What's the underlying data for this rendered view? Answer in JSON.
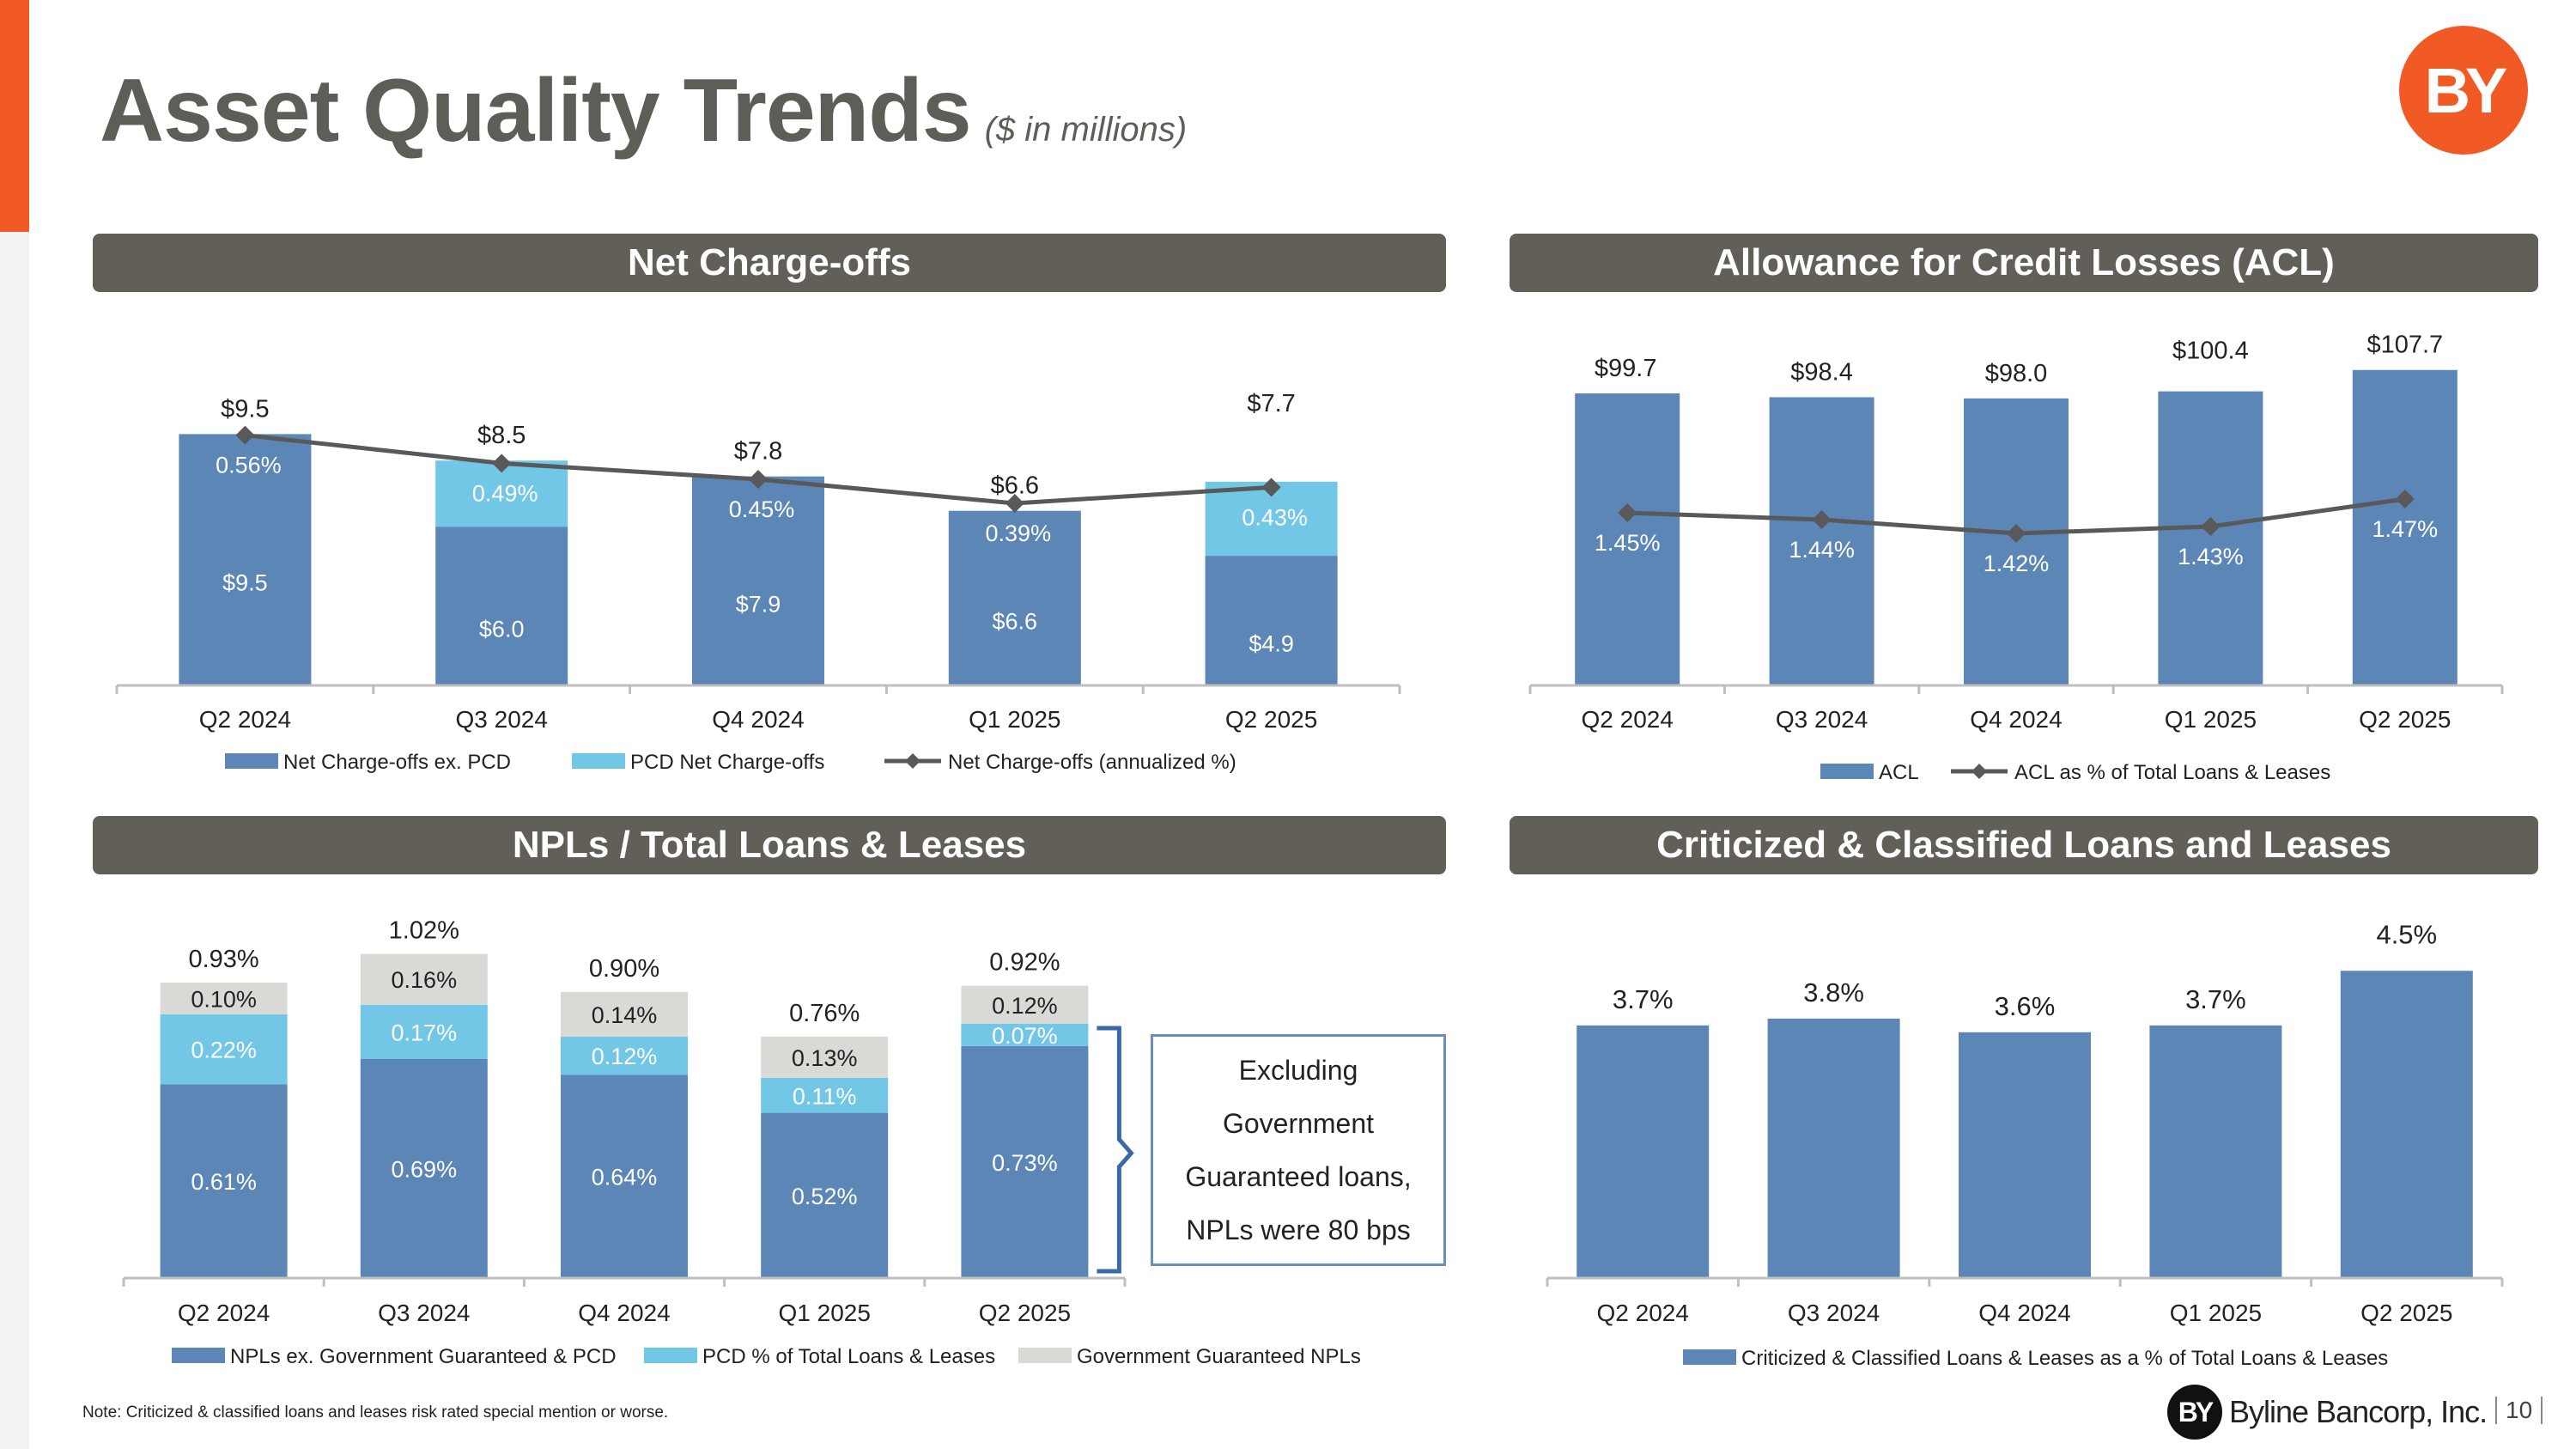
{
  "header": {
    "title": "Asset Quality Trends",
    "subtitle": "($ in millions)",
    "logo_text": "BY"
  },
  "colors": {
    "accent": "#f15a24",
    "band": "#625f59",
    "dark_blue": "#5b86b6",
    "light_blue": "#72c6e6",
    "gray": "#d9d9d6",
    "line": "#595959"
  },
  "panels": {
    "net_chargeoffs": "Net Charge-offs",
    "acl": "Allowance for Credit Losses (ACL)",
    "npls": "NPLs / Total Loans & Leases",
    "criticized": "Criticized & Classified Loans and Leases"
  },
  "chart_data": [
    {
      "id": "net_chargeoffs",
      "type": "bar",
      "stacked": true,
      "title": "Net Charge-offs",
      "categories": [
        "Q2 2024",
        "Q3 2024",
        "Q4 2024",
        "Q1 2025",
        "Q2 2025"
      ],
      "series": [
        {
          "name": "Net Charge-offs ex. PCD",
          "kind": "bar",
          "values": [
            9.5,
            6.0,
            7.9,
            6.6,
            4.9
          ],
          "labels": [
            "$9.5",
            "$6.0",
            "$7.9",
            "$6.6",
            "$4.9"
          ]
        },
        {
          "name": "PCD Net Charge-offs",
          "kind": "bar",
          "values": [
            0,
            2.5,
            -0.1,
            0,
            2.8
          ]
        },
        {
          "name": "Net Charge-offs (annualized %)",
          "kind": "line",
          "values": [
            0.56,
            0.49,
            0.45,
            0.39,
            0.43
          ],
          "labels": [
            "0.56%",
            "0.49%",
            "0.45%",
            "0.39%",
            "0.43%"
          ]
        }
      ],
      "totals": [
        "$9.5",
        "$8.5",
        "$7.8",
        "$6.6",
        "$7.7"
      ],
      "ylim": [
        0,
        12
      ],
      "line_ylim": [
        0,
        1.2
      ]
    },
    {
      "id": "acl",
      "type": "bar",
      "title": "Allowance for Credit Losses (ACL)",
      "categories": [
        "Q2 2024",
        "Q3 2024",
        "Q4 2024",
        "Q1 2025",
        "Q2 2025"
      ],
      "series": [
        {
          "name": "ACL",
          "kind": "bar",
          "values": [
            99.7,
            98.4,
            98.0,
            100.4,
            107.7
          ],
          "labels": [
            "$99.7",
            "$98.4",
            "$98.0",
            "$100.4",
            "$107.7"
          ]
        },
        {
          "name": "ACL as % of Total Loans & Leases",
          "kind": "line",
          "values": [
            1.45,
            1.44,
            1.42,
            1.43,
            1.47
          ],
          "labels": [
            "1.45%",
            "1.44%",
            "1.42%",
            "1.43%",
            "1.47%"
          ]
        }
      ],
      "ylim": [
        0,
        120
      ]
    },
    {
      "id": "npls",
      "type": "bar",
      "stacked": true,
      "title": "NPLs / Total Loans & Leases",
      "categories": [
        "Q2 2024",
        "Q3 2024",
        "Q4 2024",
        "Q1 2025",
        "Q2 2025"
      ],
      "series": [
        {
          "name": "NPLs ex. Government Guaranteed & PCD",
          "kind": "bar",
          "values": [
            0.61,
            0.69,
            0.64,
            0.52,
            0.73
          ],
          "labels": [
            "0.61%",
            "0.69%",
            "0.64%",
            "0.52%",
            "0.73%"
          ]
        },
        {
          "name": "PCD % of Total Loans & Leases",
          "kind": "bar",
          "values": [
            0.22,
            0.17,
            0.12,
            0.11,
            0.07
          ],
          "labels": [
            "0.22%",
            "0.17%",
            "0.12%",
            "0.11%",
            "0.07%"
          ]
        },
        {
          "name": "Government Guaranteed NPLs",
          "kind": "bar",
          "values": [
            0.1,
            0.16,
            0.14,
            0.13,
            0.12
          ],
          "labels": [
            "0.10%",
            "0.16%",
            "0.14%",
            "0.13%",
            "0.12%"
          ]
        }
      ],
      "totals": [
        "0.93%",
        "1.02%",
        "0.90%",
        "0.76%",
        "0.92%"
      ],
      "callout": [
        "Excluding",
        "Government",
        "Guaranteed loans,",
        "NPLs were 80 bps"
      ],
      "ylim": [
        0,
        1.25
      ]
    },
    {
      "id": "criticized",
      "type": "bar",
      "title": "Criticized & Classified Loans and Leases",
      "categories": [
        "Q2 2024",
        "Q3 2024",
        "Q4 2024",
        "Q1 2025",
        "Q2 2025"
      ],
      "series": [
        {
          "name": "Criticized & Classified Loans & Leases as a % of Total Loans & Leases",
          "kind": "bar",
          "values": [
            3.7,
            3.8,
            3.6,
            3.7,
            4.5
          ],
          "labels": [
            "3.7%",
            "3.8%",
            "3.6%",
            "3.7%",
            "4.5%"
          ]
        }
      ],
      "ylim": [
        0,
        5.2
      ]
    }
  ],
  "footer": {
    "note": "Note: Criticized & classified loans and leases risk rated special mention or worse.",
    "company_logo": "BY",
    "company_name": "Byline Bancorp, Inc.",
    "page_number": "10"
  }
}
